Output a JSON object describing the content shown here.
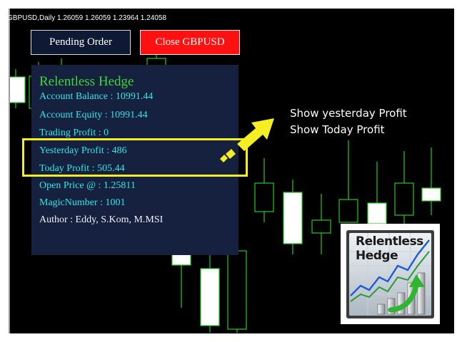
{
  "chart": {
    "symbol_info": "GBPUSD,Daily  1.26059 1.26059 1.23964 1.24058",
    "background_color": "#000000",
    "bull_candle_color": "#ffffff",
    "bear_candle_color": "#000000",
    "wick_color": "#22cc22"
  },
  "buttons": {
    "pending_order": "Pending Order",
    "close_symbol": "Close GBPUSD"
  },
  "panel": {
    "title": "Relentless Hedge",
    "lines": [
      "Account Balance : 10991.44",
      "Account Equity : 10991.44",
      "Trading Profit : 0",
      "Yesterday Profit : 486",
      "Today Profit : 505.44",
      "Open Price @ : 1.25811",
      "MagicNumber : 1001",
      "Author : Eddy, S.Kom, M.MSI"
    ]
  },
  "annotation": {
    "line1": "Show yesterday Profit",
    "line2": "Show Today Profit",
    "highlight_color": "#f5ee22",
    "arrow_icon": "yellow-arrow-icon"
  },
  "logo": {
    "word1": "Relentless",
    "word2": "Hedge",
    "icon": "rising-chart-logo-icon"
  }
}
